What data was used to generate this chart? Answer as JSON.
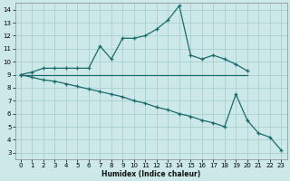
{
  "xlabel": "Humidex (Indice chaleur)",
  "xlim": [
    -0.5,
    23.5
  ],
  "ylim": [
    2.5,
    14.5
  ],
  "yticks": [
    3,
    4,
    5,
    6,
    7,
    8,
    9,
    10,
    11,
    12,
    13,
    14
  ],
  "xticks": [
    0,
    1,
    2,
    3,
    4,
    5,
    6,
    7,
    8,
    9,
    10,
    11,
    12,
    13,
    14,
    15,
    16,
    17,
    18,
    19,
    20,
    21,
    22,
    23
  ],
  "bg_color": "#cce8e8",
  "grid_color": "#aacece",
  "line_color": "#1a6b6b",
  "line1_x": [
    0,
    1,
    2,
    3,
    4,
    5,
    6,
    7,
    8,
    9,
    10,
    11,
    12,
    13,
    14,
    15,
    16,
    17,
    18,
    19,
    20
  ],
  "line1_y": [
    9.0,
    9.2,
    9.5,
    9.5,
    9.5,
    9.5,
    9.5,
    11.2,
    10.2,
    11.8,
    11.8,
    12.0,
    12.5,
    13.2,
    14.3,
    10.5,
    10.2,
    10.5,
    10.2,
    9.8,
    9.3
  ],
  "line2_x": [
    0,
    1,
    2,
    3,
    4,
    5,
    6,
    7,
    8,
    9,
    10,
    11,
    12,
    13,
    14,
    15,
    16,
    17,
    18,
    19,
    20
  ],
  "line2_y": [
    9.0,
    9.0,
    9.0,
    9.0,
    9.0,
    9.0,
    9.0,
    9.0,
    9.0,
    9.0,
    9.0,
    9.0,
    9.0,
    9.0,
    9.0,
    9.0,
    9.0,
    9.0,
    9.0,
    9.0,
    9.0
  ],
  "line3_x": [
    0,
    1,
    2,
    3,
    4,
    5,
    6,
    7,
    8,
    9,
    10,
    11,
    12,
    13,
    14,
    15,
    16,
    17,
    18,
    19,
    20,
    21,
    22,
    23
  ],
  "line3_y": [
    9.0,
    8.8,
    8.6,
    8.5,
    8.3,
    8.1,
    7.9,
    7.7,
    7.5,
    7.3,
    7.0,
    6.8,
    6.5,
    6.3,
    6.0,
    5.8,
    5.5,
    5.3,
    5.0,
    7.5,
    5.5,
    4.5,
    4.2,
    3.2
  ]
}
